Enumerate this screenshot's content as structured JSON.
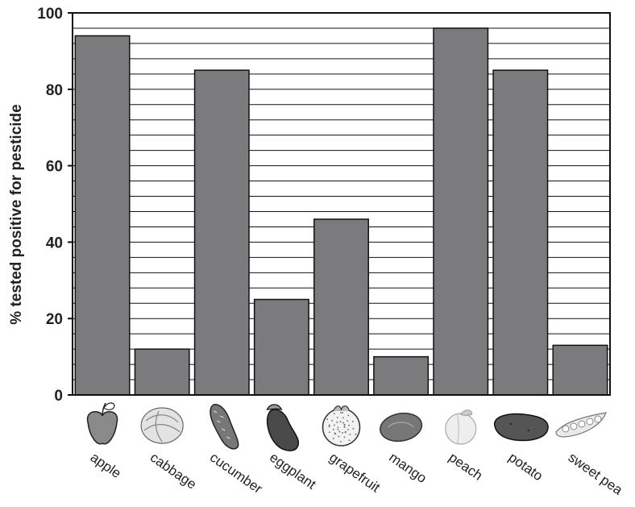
{
  "chart_data": {
    "type": "bar",
    "ylabel": "% tested positive for pesticide",
    "xlabel": "",
    "ylim": [
      0,
      100
    ],
    "y_ticks": [
      "0",
      "20",
      "40",
      "60",
      "80",
      "100"
    ],
    "y_tick_values": [
      0,
      20,
      40,
      60,
      80,
      100
    ],
    "grid": true,
    "grid_step": 4,
    "categories": [
      "apple",
      "cabbage",
      "cucumber",
      "eggplant",
      "grapefruit",
      "mango",
      "peach",
      "potato",
      "sweet pea"
    ],
    "values": [
      94,
      12,
      85,
      25,
      46,
      10,
      96,
      85,
      13
    ],
    "category_icons": [
      "apple-icon",
      "cabbage-icon",
      "cucumber-icon",
      "eggplant-icon",
      "grapefruit-icon",
      "mango-icon",
      "peach-icon",
      "potato-icon",
      "sweet-pea-icon"
    ],
    "colors": {
      "bar": "#7b7b7e",
      "bar_stroke": "#111111",
      "grid": "#111111",
      "axis": "#111111"
    }
  }
}
